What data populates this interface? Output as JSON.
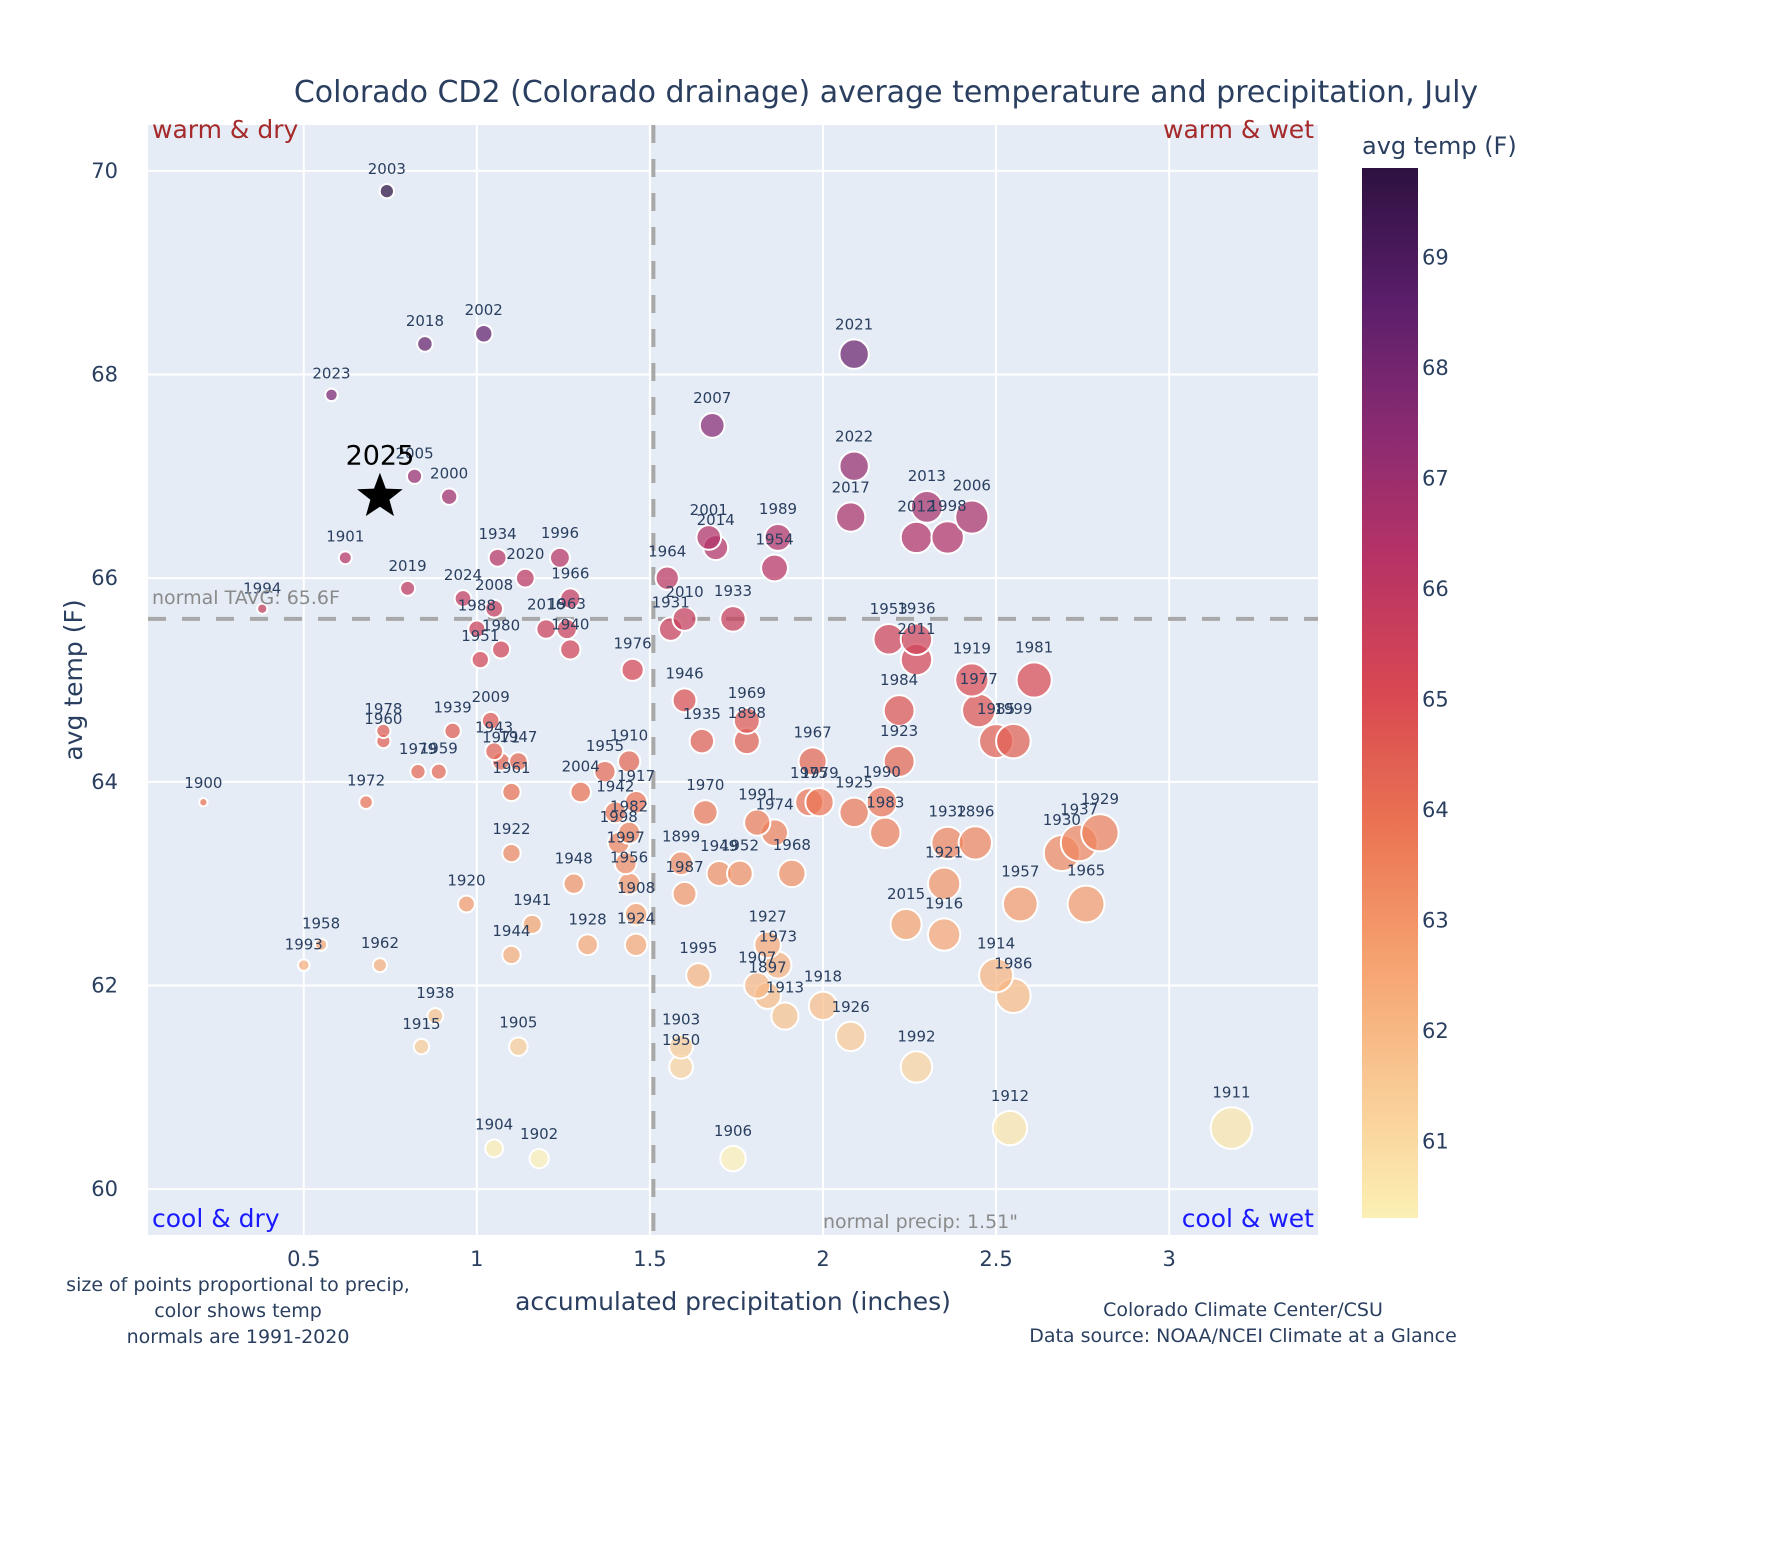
{
  "chart_data": {
    "type": "scatter",
    "title": "Colorado CD2 (Colorado drainage) average temperature and precipitation, July",
    "xlabel": "accumulated precipitation (inches)",
    "ylabel": "avg temp (F)",
    "xlim": [
      0.05,
      3.43
    ],
    "ylim": [
      59.55,
      70.45
    ],
    "xticks": [
      0.5,
      1,
      1.5,
      2,
      2.5,
      3
    ],
    "xtick_labels": [
      "0.5",
      "1",
      "1.5",
      "2",
      "2.5",
      "3"
    ],
    "yticks": [
      60,
      62,
      64,
      66,
      68,
      70
    ],
    "ytick_labels": [
      "60",
      "62",
      "64",
      "66",
      "68",
      "70"
    ],
    "grid": true,
    "normal_temp": 65.6,
    "normal_temp_label": "normal TAVG: 65.6F",
    "normal_precip": 1.51,
    "normal_precip_label": "normal precip: 1.51\"",
    "quadrant_labels": {
      "top_left": "warm & dry",
      "top_right": "warm & wet",
      "bottom_left": "cool & dry",
      "bottom_right": "cool & wet"
    },
    "colorbar": {
      "title": "avg temp (F)",
      "range": [
        60.3,
        69.8
      ],
      "ticks": [
        61,
        62,
        63,
        64,
        65,
        66,
        67,
        68,
        69
      ],
      "tick_labels": [
        "61",
        "62",
        "63",
        "64",
        "65",
        "66",
        "67",
        "68",
        "69"
      ],
      "colorscale": [
        "#fcf0b4",
        "#f9c994",
        "#f5a06e",
        "#ea7353",
        "#d84852",
        "#b83365",
        "#8a2b72",
        "#5a1e6a",
        "#2d1140"
      ]
    },
    "size_encoding": "precip",
    "highlight": {
      "label": "2025",
      "precip": 0.72,
      "temp": 66.8,
      "marker": "star"
    },
    "points": [
      {
        "year": "2003",
        "precip": 0.74,
        "temp": 69.8
      },
      {
        "year": "2018",
        "precip": 0.85,
        "temp": 68.3
      },
      {
        "year": "2002",
        "precip": 1.02,
        "temp": 68.4
      },
      {
        "year": "2023",
        "precip": 0.58,
        "temp": 67.8
      },
      {
        "year": "2005",
        "precip": 0.82,
        "temp": 67.0
      },
      {
        "year": "2000",
        "precip": 0.92,
        "temp": 66.8
      },
      {
        "year": "1901",
        "precip": 0.62,
        "temp": 66.2
      },
      {
        "year": "2019",
        "precip": 0.8,
        "temp": 65.9
      },
      {
        "year": "1994",
        "precip": 0.38,
        "temp": 65.7
      },
      {
        "year": "1934",
        "precip": 1.06,
        "temp": 66.2
      },
      {
        "year": "1996",
        "precip": 1.24,
        "temp": 66.2
      },
      {
        "year": "2020",
        "precip": 1.14,
        "temp": 66.0
      },
      {
        "year": "1966",
        "precip": 1.27,
        "temp": 65.8
      },
      {
        "year": "2024",
        "precip": 0.96,
        "temp": 65.8
      },
      {
        "year": "2008",
        "precip": 1.05,
        "temp": 65.7
      },
      {
        "year": "1988",
        "precip": 1.0,
        "temp": 65.5
      },
      {
        "year": "2016",
        "precip": 1.2,
        "temp": 65.5
      },
      {
        "year": "1963",
        "precip": 1.26,
        "temp": 65.5
      },
      {
        "year": "1980",
        "precip": 1.07,
        "temp": 65.3
      },
      {
        "year": "1940",
        "precip": 1.27,
        "temp": 65.3
      },
      {
        "year": "1951",
        "precip": 1.01,
        "temp": 65.2
      },
      {
        "year": "1976",
        "precip": 1.45,
        "temp": 65.1
      },
      {
        "year": "1964",
        "precip": 1.55,
        "temp": 66.0
      },
      {
        "year": "2010",
        "precip": 1.6,
        "temp": 65.6
      },
      {
        "year": "1931",
        "precip": 1.56,
        "temp": 65.5
      },
      {
        "year": "1933",
        "precip": 1.74,
        "temp": 65.6
      },
      {
        "year": "2007",
        "precip": 1.68,
        "temp": 67.5
      },
      {
        "year": "2001",
        "precip": 1.67,
        "temp": 66.4
      },
      {
        "year": "2014",
        "precip": 1.69,
        "temp": 66.3
      },
      {
        "year": "1989",
        "precip": 1.87,
        "temp": 66.4
      },
      {
        "year": "1954",
        "precip": 1.86,
        "temp": 66.1
      },
      {
        "year": "2021",
        "precip": 2.09,
        "temp": 68.2
      },
      {
        "year": "2022",
        "precip": 2.09,
        "temp": 67.1
      },
      {
        "year": "2017",
        "precip": 2.08,
        "temp": 66.6
      },
      {
        "year": "2013",
        "precip": 2.3,
        "temp": 66.7
      },
      {
        "year": "2012",
        "precip": 2.27,
        "temp": 66.4
      },
      {
        "year": "1998",
        "precip": 2.36,
        "temp": 66.4
      },
      {
        "year": "2006",
        "precip": 2.43,
        "temp": 66.6
      },
      {
        "year": "1953",
        "precip": 2.19,
        "temp": 65.4
      },
      {
        "year": "1936",
        "precip": 2.27,
        "temp": 65.4
      },
      {
        "year": "2011",
        "precip": 2.27,
        "temp": 65.2
      },
      {
        "year": "1984",
        "precip": 2.22,
        "temp": 64.7
      },
      {
        "year": "1919",
        "precip": 2.43,
        "temp": 65.0
      },
      {
        "year": "1977",
        "precip": 2.45,
        "temp": 64.7
      },
      {
        "year": "1981",
        "precip": 2.61,
        "temp": 65.0
      },
      {
        "year": "1985",
        "precip": 2.5,
        "temp": 64.4
      },
      {
        "year": "1999",
        "precip": 2.55,
        "temp": 64.4
      },
      {
        "year": "1923",
        "precip": 2.22,
        "temp": 64.2
      },
      {
        "year": "1946",
        "precip": 1.6,
        "temp": 64.8
      },
      {
        "year": "1935",
        "precip": 1.65,
        "temp": 64.4
      },
      {
        "year": "1969",
        "precip": 1.78,
        "temp": 64.6
      },
      {
        "year": "1898",
        "precip": 1.78,
        "temp": 64.4
      },
      {
        "year": "1967",
        "precip": 1.97,
        "temp": 64.2
      },
      {
        "year": "1975",
        "precip": 1.96,
        "temp": 63.8
      },
      {
        "year": "1979",
        "precip": 1.99,
        "temp": 63.8
      },
      {
        "year": "1990",
        "precip": 2.17,
        "temp": 63.8
      },
      {
        "year": "1925",
        "precip": 2.09,
        "temp": 63.7
      },
      {
        "year": "1983",
        "precip": 2.18,
        "temp": 63.5
      },
      {
        "year": "1932",
        "precip": 2.36,
        "temp": 63.4
      },
      {
        "year": "1896",
        "precip": 2.44,
        "temp": 63.4
      },
      {
        "year": "1921",
        "precip": 2.35,
        "temp": 63.0
      },
      {
        "year": "1937",
        "precip": 2.74,
        "temp": 63.4
      },
      {
        "year": "1929",
        "precip": 2.8,
        "temp": 63.5
      },
      {
        "year": "1930",
        "precip": 2.69,
        "temp": 63.3
      },
      {
        "year": "1957",
        "precip": 2.57,
        "temp": 62.8
      },
      {
        "year": "1965",
        "precip": 2.76,
        "temp": 62.8
      },
      {
        "year": "2015",
        "precip": 2.24,
        "temp": 62.6
      },
      {
        "year": "1916",
        "precip": 2.35,
        "temp": 62.5
      },
      {
        "year": "1914",
        "precip": 2.5,
        "temp": 62.1
      },
      {
        "year": "1986",
        "precip": 2.55,
        "temp": 61.9
      },
      {
        "year": "1992",
        "precip": 2.27,
        "temp": 61.2
      },
      {
        "year": "1912",
        "precip": 2.54,
        "temp": 60.6
      },
      {
        "year": "1911",
        "precip": 3.18,
        "temp": 60.6
      },
      {
        "year": "1970",
        "precip": 1.66,
        "temp": 63.7
      },
      {
        "year": "1991",
        "precip": 1.81,
        "temp": 63.6
      },
      {
        "year": "1974",
        "precip": 1.86,
        "temp": 63.5
      },
      {
        "year": "1899",
        "precip": 1.59,
        "temp": 63.2
      },
      {
        "year": "1949",
        "precip": 1.7,
        "temp": 63.1
      },
      {
        "year": "1952",
        "precip": 1.76,
        "temp": 63.1
      },
      {
        "year": "1968",
        "precip": 1.91,
        "temp": 63.1
      },
      {
        "year": "1987",
        "precip": 1.6,
        "temp": 62.9
      },
      {
        "year": "1927",
        "precip": 1.84,
        "temp": 62.4
      },
      {
        "year": "1973",
        "precip": 1.87,
        "temp": 62.2
      },
      {
        "year": "1907",
        "precip": 1.81,
        "temp": 62.0
      },
      {
        "year": "1897",
        "precip": 1.84,
        "temp": 61.9
      },
      {
        "year": "1913",
        "precip": 1.89,
        "temp": 61.7
      },
      {
        "year": "1918",
        "precip": 2.0,
        "temp": 61.8
      },
      {
        "year": "1926",
        "precip": 2.08,
        "temp": 61.5
      },
      {
        "year": "1995",
        "precip": 1.64,
        "temp": 62.1
      },
      {
        "year": "1903",
        "precip": 1.59,
        "temp": 61.4
      },
      {
        "year": "1950",
        "precip": 1.59,
        "temp": 61.2
      },
      {
        "year": "1906",
        "precip": 1.74,
        "temp": 60.3
      },
      {
        "year": "1910",
        "precip": 1.44,
        "temp": 64.2
      },
      {
        "year": "1955",
        "precip": 1.37,
        "temp": 64.1
      },
      {
        "year": "2004",
        "precip": 1.3,
        "temp": 63.9
      },
      {
        "year": "1917",
        "precip": 1.46,
        "temp": 63.8
      },
      {
        "year": "1942",
        "precip": 1.4,
        "temp": 63.7
      },
      {
        "year": "1998b",
        "precip": 1.41,
        "temp": 63.4
      },
      {
        "year": "1982",
        "precip": 1.44,
        "temp": 63.5
      },
      {
        "year": "1997",
        "precip": 1.43,
        "temp": 63.2
      },
      {
        "year": "1956",
        "precip": 1.44,
        "temp": 63.0
      },
      {
        "year": "1908",
        "precip": 1.46,
        "temp": 62.7
      },
      {
        "year": "1924",
        "precip": 1.46,
        "temp": 62.4
      },
      {
        "year": "1948",
        "precip": 1.28,
        "temp": 63.0
      },
      {
        "year": "1928",
        "precip": 1.32,
        "temp": 62.4
      },
      {
        "year": "1941",
        "precip": 1.16,
        "temp": 62.6
      },
      {
        "year": "1944",
        "precip": 1.1,
        "temp": 62.3
      },
      {
        "year": "1922",
        "precip": 1.1,
        "temp": 63.3
      },
      {
        "year": "1961",
        "precip": 1.1,
        "temp": 63.9
      },
      {
        "year": "1971",
        "precip": 1.07,
        "temp": 64.2
      },
      {
        "year": "1947",
        "precip": 1.12,
        "temp": 64.2
      },
      {
        "year": "1943",
        "precip": 1.05,
        "temp": 64.3
      },
      {
        "year": "2009",
        "precip": 1.04,
        "temp": 64.6
      },
      {
        "year": "1939",
        "precip": 0.93,
        "temp": 64.5
      },
      {
        "year": "1978",
        "precip": 0.73,
        "temp": 64.5
      },
      {
        "year": "1960",
        "precip": 0.73,
        "temp": 64.4
      },
      {
        "year": "1979b",
        "precip": 0.83,
        "temp": 64.1
      },
      {
        "year": "1959",
        "precip": 0.89,
        "temp": 64.1
      },
      {
        "year": "1972",
        "precip": 0.68,
        "temp": 63.8
      },
      {
        "year": "1900",
        "precip": 0.21,
        "temp": 63.8
      },
      {
        "year": "1920",
        "precip": 0.97,
        "temp": 62.8
      },
      {
        "year": "1958",
        "precip": 0.55,
        "temp": 62.4
      },
      {
        "year": "1993",
        "precip": 0.5,
        "temp": 62.2
      },
      {
        "year": "1962",
        "precip": 0.72,
        "temp": 62.2
      },
      {
        "year": "1938",
        "precip": 0.88,
        "temp": 61.7
      },
      {
        "year": "1915",
        "precip": 0.84,
        "temp": 61.4
      },
      {
        "year": "1905",
        "precip": 1.12,
        "temp": 61.4
      },
      {
        "year": "1904",
        "precip": 1.05,
        "temp": 60.4
      },
      {
        "year": "1902",
        "precip": 1.18,
        "temp": 60.3
      }
    ]
  },
  "footnotes": {
    "left_lines": [
      "size of points proportional to precip,",
      "color shows temp",
      "normals are 1991-2020"
    ],
    "right_lines": [
      "Colorado Climate Center/CSU",
      "Data source: NOAA/NCEI Climate at a Glance"
    ]
  }
}
